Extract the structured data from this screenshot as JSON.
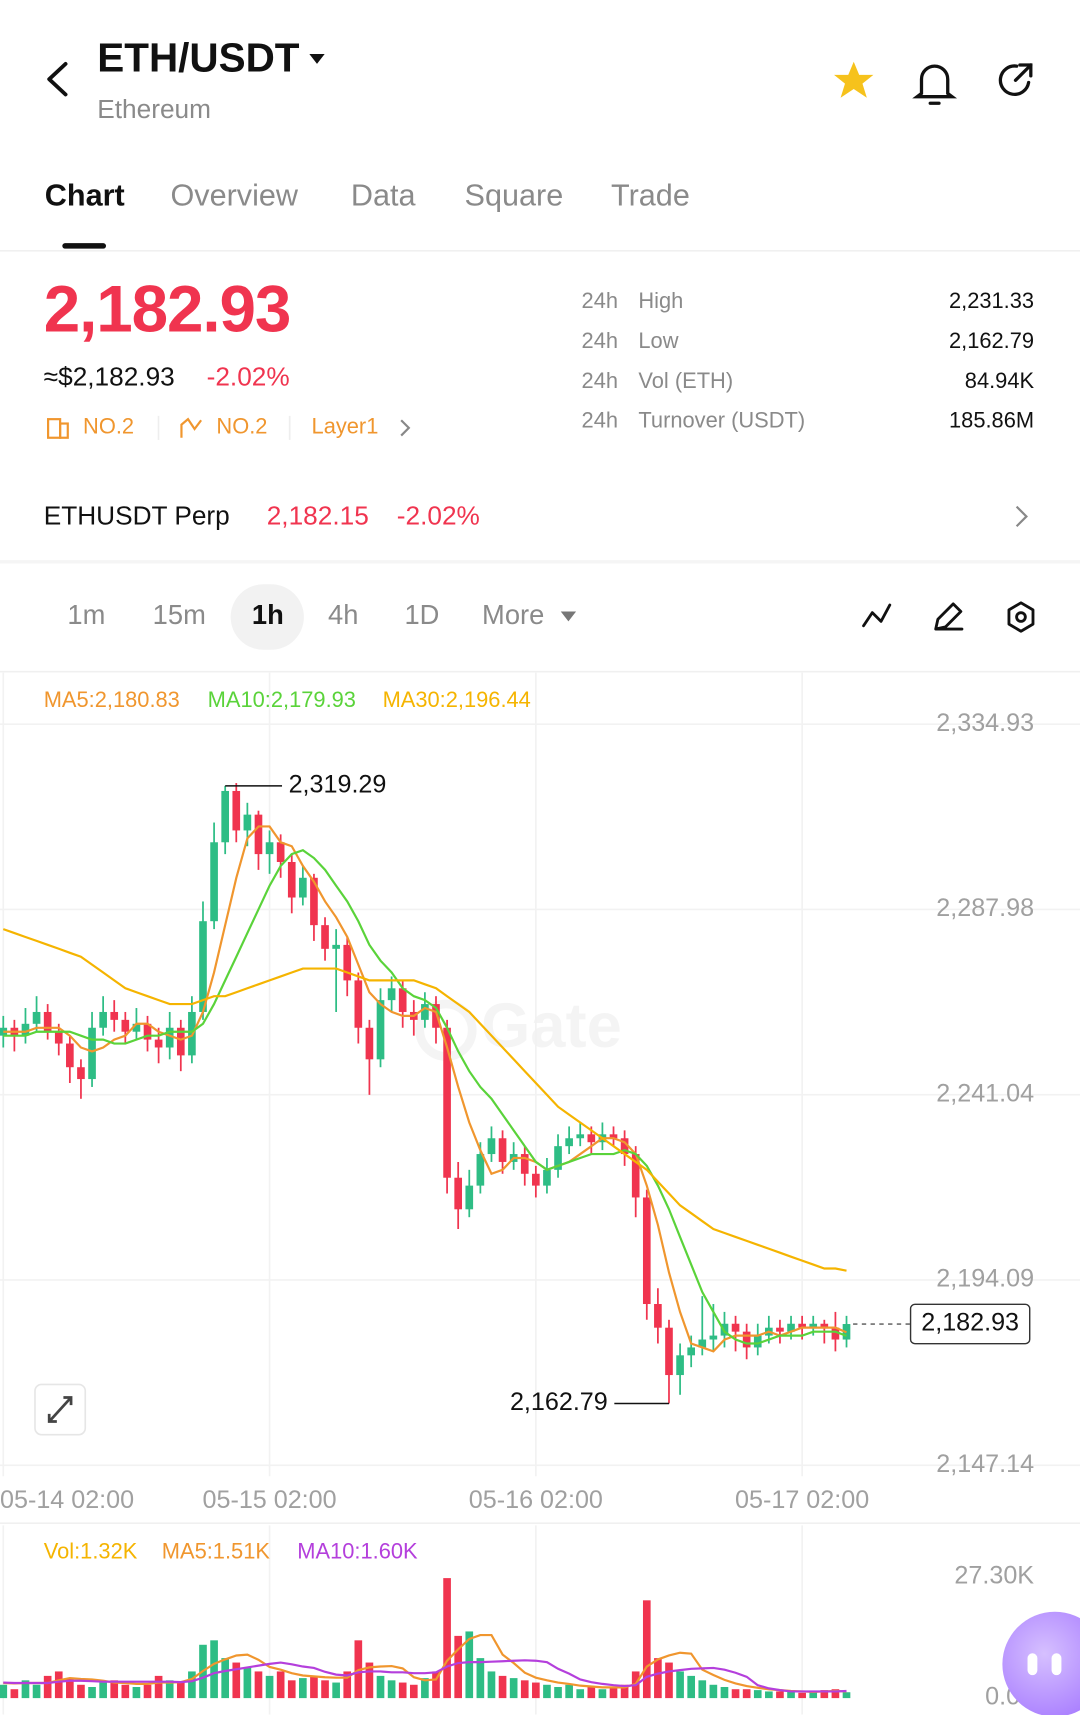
{
  "header": {
    "symbol": "ETH/USDT",
    "name": "Ethereum"
  },
  "tabs": {
    "items": [
      "Chart",
      "Overview",
      "Data",
      "Square",
      "Trade"
    ],
    "selected": 0
  },
  "quote": {
    "price": "2,182.93",
    "usd": "≈$2,182.93",
    "change": "-2.02%",
    "badges": [
      "NO.2",
      "NO.2",
      "Layer1"
    ]
  },
  "stats": [
    {
      "period": "24h",
      "label": "High",
      "value": "2,231.33"
    },
    {
      "period": "24h",
      "label": "Low",
      "value": "2,162.79"
    },
    {
      "period": "24h",
      "label": "Vol (ETH)",
      "value": "84.94K"
    },
    {
      "period": "24h",
      "label": "Turnover (USDT)",
      "value": "185.86M"
    }
  ],
  "perp": {
    "name": "ETHUSDT Perp",
    "price": "2,182.15",
    "change": "-2.02%"
  },
  "intervals": {
    "items": [
      "1m",
      "15m",
      "1h",
      "4h",
      "1D",
      "More"
    ],
    "selected": 2
  },
  "chart_data": {
    "type": "candlestick",
    "watermark": "Gate",
    "up_color": "#2ebd85",
    "down_color": "#f0344f",
    "grid": true,
    "ylim": [
      2144.37,
      2347.95
    ],
    "yticks": [
      {
        "value": 2334.93,
        "label": "2,334.93"
      },
      {
        "value": 2287.98,
        "label": "2,287.98"
      },
      {
        "value": 2241.04,
        "label": "2,241.04"
      },
      {
        "value": 2194.09,
        "label": "2,194.09"
      },
      {
        "value": 2147.14,
        "label": "2,147.14"
      }
    ],
    "xticks": [
      "05-14 02:00",
      "05-15 02:00",
      "05-16 02:00",
      "05-17 02:00"
    ],
    "x": [
      "05-14 02:00",
      "05-14 03:00",
      "05-14 04:00",
      "05-14 05:00",
      "05-14 06:00",
      "05-14 07:00",
      "05-14 08:00",
      "05-14 09:00",
      "05-14 10:00",
      "05-14 11:00",
      "05-14 12:00",
      "05-14 13:00",
      "05-14 14:00",
      "05-14 15:00",
      "05-14 16:00",
      "05-14 17:00",
      "05-14 18:00",
      "05-14 19:00",
      "05-14 20:00",
      "05-14 21:00",
      "05-14 22:00",
      "05-14 23:00",
      "05-15 00:00",
      "05-15 01:00",
      "05-15 02:00",
      "05-15 03:00",
      "05-15 04:00",
      "05-15 05:00",
      "05-15 06:00",
      "05-15 07:00",
      "05-15 08:00",
      "05-15 09:00",
      "05-15 10:00",
      "05-15 11:00",
      "05-15 12:00",
      "05-15 13:00",
      "05-15 14:00",
      "05-15 15:00",
      "05-15 16:00",
      "05-15 17:00",
      "05-15 18:00",
      "05-15 19:00",
      "05-15 20:00",
      "05-15 21:00",
      "05-15 22:00",
      "05-15 23:00",
      "05-16 00:00",
      "05-16 01:00",
      "05-16 02:00",
      "05-16 03:00",
      "05-16 04:00",
      "05-16 05:00",
      "05-16 06:00",
      "05-16 07:00",
      "05-16 08:00",
      "05-16 09:00",
      "05-16 10:00",
      "05-16 11:00",
      "05-16 12:00",
      "05-16 13:00",
      "05-16 14:00",
      "05-16 15:00",
      "05-16 16:00",
      "05-16 17:00",
      "05-16 18:00",
      "05-16 19:00",
      "05-16 20:00",
      "05-16 21:00",
      "05-16 22:00",
      "05-16 23:00",
      "05-17 00:00",
      "05-17 01:00",
      "05-17 02:00",
      "05-17 03:00",
      "05-17 04:00",
      "05-17 05:00",
      "05-17 06:00"
    ],
    "candles": [
      [
        2256,
        2261,
        2253,
        2258
      ],
      [
        2258,
        2260,
        2252,
        2256
      ],
      [
        2256,
        2263,
        2254,
        2259
      ],
      [
        2259,
        2266,
        2257,
        2262
      ],
      [
        2262,
        2264,
        2255,
        2257
      ],
      [
        2257,
        2259,
        2251,
        2254
      ],
      [
        2254,
        2256,
        2244,
        2248
      ],
      [
        2248,
        2250,
        2240,
        2245
      ],
      [
        2245,
        2262,
        2243,
        2258
      ],
      [
        2258,
        2266,
        2256,
        2262
      ],
      [
        2262,
        2265,
        2257,
        2260
      ],
      [
        2260,
        2262,
        2254,
        2257
      ],
      [
        2257,
        2263,
        2255,
        2259
      ],
      [
        2259,
        2261,
        2252,
        2255
      ],
      [
        2255,
        2258,
        2249,
        2253
      ],
      [
        2253,
        2262,
        2250,
        2258
      ],
      [
        2258,
        2260,
        2247,
        2251
      ],
      [
        2251,
        2266,
        2249,
        2262
      ],
      [
        2262,
        2290,
        2260,
        2285
      ],
      [
        2285,
        2310,
        2283,
        2305
      ],
      [
        2305,
        2319.29,
        2302,
        2318
      ],
      [
        2318,
        2320,
        2305,
        2308
      ],
      [
        2308,
        2315,
        2304,
        2312
      ],
      [
        2312,
        2313,
        2298,
        2302
      ],
      [
        2302,
        2308,
        2297,
        2305
      ],
      [
        2305,
        2307,
        2296,
        2300
      ],
      [
        2300,
        2302,
        2287,
        2291
      ],
      [
        2291,
        2299,
        2289,
        2296
      ],
      [
        2296,
        2297,
        2280,
        2284
      ],
      [
        2284,
        2286,
        2275,
        2278
      ],
      [
        2278,
        2283,
        2262,
        2279
      ],
      [
        2279,
        2281,
        2266,
        2270
      ],
      [
        2270,
        2272,
        2254,
        2258
      ],
      [
        2258,
        2260,
        2241,
        2250
      ],
      [
        2250,
        2268,
        2248,
        2265
      ],
      [
        2265,
        2271,
        2262,
        2268
      ],
      [
        2268,
        2270,
        2258,
        2262
      ],
      [
        2262,
        2265,
        2256,
        2260
      ],
      [
        2260,
        2267,
        2258,
        2264
      ],
      [
        2264,
        2266,
        2254,
        2258
      ],
      [
        2258,
        2260,
        2216,
        2220
      ],
      [
        2220,
        2224,
        2207,
        2212
      ],
      [
        2212,
        2222,
        2210,
        2218
      ],
      [
        2218,
        2229,
        2216,
        2226
      ],
      [
        2226,
        2233,
        2224,
        2230
      ],
      [
        2230,
        2232,
        2221,
        2224
      ],
      [
        2224,
        2229,
        2222,
        2226
      ],
      [
        2226,
        2228,
        2218,
        2221
      ],
      [
        2221,
        2223,
        2215,
        2218
      ],
      [
        2218,
        2225,
        2216,
        2222
      ],
      [
        2222,
        2231,
        2220,
        2228
      ],
      [
        2228,
        2233,
        2226,
        2230
      ],
      [
        2230,
        2234,
        2228,
        2231
      ],
      [
        2231,
        2233,
        2226,
        2229
      ],
      [
        2229,
        2234,
        2227,
        2231
      ],
      [
        2231,
        2233,
        2228,
        2230
      ],
      [
        2230,
        2232,
        2223,
        2226
      ],
      [
        2226,
        2228,
        2210,
        2215
      ],
      [
        2215,
        2217,
        2184,
        2188
      ],
      [
        2188,
        2192,
        2178,
        2182
      ],
      [
        2182,
        2184,
        2162.79,
        2170
      ],
      [
        2170,
        2178,
        2165,
        2175
      ],
      [
        2175,
        2180,
        2172,
        2177
      ],
      [
        2177,
        2190,
        2175,
        2179
      ],
      [
        2179,
        2188,
        2176,
        2180
      ],
      [
        2180,
        2186,
        2177,
        2183
      ],
      [
        2183,
        2185,
        2176,
        2181
      ],
      [
        2181,
        2183,
        2174,
        2177
      ],
      [
        2177,
        2183,
        2175,
        2180
      ],
      [
        2180,
        2185,
        2178,
        2182
      ],
      [
        2182,
        2184,
        2178,
        2181
      ],
      [
        2181,
        2185,
        2179,
        2183
      ],
      [
        2183,
        2185,
        2179,
        2182
      ],
      [
        2182,
        2185,
        2180,
        2183
      ],
      [
        2183,
        2184,
        2178,
        2182
      ],
      [
        2182,
        2186,
        2176,
        2179
      ],
      [
        2179,
        2185,
        2177,
        2182.93
      ]
    ],
    "series": [
      {
        "name": "MA5",
        "legend_label": "MA5:2,180.83",
        "color": "#f0962e",
        "values": [
          2257,
          2257,
          2257,
          2258,
          2258,
          2258,
          2256,
          2253,
          2252,
          2253,
          2255,
          2256,
          2259,
          2259,
          2257,
          2256,
          2255,
          2256,
          2262,
          2272,
          2284,
          2296,
          2306,
          2309,
          2309,
          2305,
          2304,
          2299,
          2295,
          2290,
          2286,
          2281,
          2274,
          2267,
          2264,
          2262,
          2261,
          2261,
          2263,
          2262,
          2253,
          2243,
          2234,
          2227,
          2221,
          2222,
          2225,
          2225,
          2224,
          2222,
          2223,
          2224,
          2226,
          2228,
          2230,
          2230,
          2229,
          2226,
          2218,
          2208,
          2196,
          2186,
          2178,
          2177,
          2176,
          2179,
          2180,
          2180,
          2180,
          2181,
          2180,
          2181,
          2182,
          2182,
          2182,
          2182,
          2180.83
        ]
      },
      {
        "name": "MA10",
        "legend_label": "MA10:2,179.93",
        "color": "#5ad33a",
        "values": [
          2256,
          2256,
          2256,
          2257,
          2257,
          2257,
          2257,
          2256,
          2255,
          2255,
          2254,
          2254,
          2255,
          2256,
          2256,
          2257,
          2257,
          2257,
          2259,
          2264,
          2270,
          2276,
          2282,
          2288,
          2294,
          2299,
          2302,
          2303,
          2301,
          2298,
          2294,
          2290,
          2285,
          2279,
          2275,
          2272,
          2268,
          2266,
          2265,
          2263,
          2258,
          2252,
          2247,
          2243,
          2240,
          2236,
          2232,
          2228,
          2224,
          2222,
          2223,
          2224,
          2225,
          2226,
          2226,
          2226,
          2227,
          2226,
          2223,
          2218,
          2212,
          2205,
          2198,
          2191,
          2186,
          2181,
          2179,
          2178,
          2178,
          2179,
          2180,
          2180,
          2180,
          2181,
          2181,
          2181,
          2179.93
        ]
      },
      {
        "name": "MA30",
        "legend_label": "MA30:2,196.44",
        "color": "#f5b400",
        "values": [
          2283,
          2282,
          2281,
          2280,
          2279,
          2278,
          2277,
          2276,
          2274,
          2272,
          2270,
          2268,
          2267,
          2266,
          2265,
          2264,
          2264,
          2264,
          2265,
          2266,
          2266,
          2267,
          2268,
          2269,
          2270,
          2271,
          2272,
          2273,
          2273,
          2273,
          2273,
          2272,
          2271,
          2270,
          2270,
          2270,
          2270,
          2270,
          2269,
          2268,
          2266,
          2264,
          2262,
          2259,
          2256,
          2253,
          2250,
          2247,
          2244,
          2241,
          2238,
          2236,
          2234,
          2232,
          2230,
          2228,
          2226,
          2224,
          2222,
          2219,
          2216,
          2213,
          2211,
          2209,
          2207,
          2206,
          2205,
          2204,
          2203,
          2202,
          2201,
          2200,
          2199,
          2198,
          2197,
          2197,
          2196.44
        ]
      }
    ],
    "high_label": {
      "value": 2319.29,
      "label": "2,319.29"
    },
    "low_label": {
      "value": 2162.79,
      "label": "2,162.79"
    },
    "last_label": {
      "value": 2182.93,
      "label": "2,182.93"
    },
    "volume": {
      "legend_label": "Vol:1.32K",
      "legend_color": "#f5b400",
      "ylim": [
        0,
        27300
      ],
      "yticks": [
        {
          "value": 27300,
          "label": "27.30K"
        },
        {
          "value": 0,
          "label": "0.00"
        }
      ],
      "values": [
        3000,
        2000,
        4000,
        3000,
        5000,
        6000,
        4500,
        3000,
        2500,
        3500,
        4000,
        3000,
        2500,
        3000,
        5000,
        4000,
        3500,
        6000,
        12000,
        13000,
        9000,
        8000,
        7000,
        6000,
        5000,
        6000,
        4000,
        4500,
        5000,
        4000,
        3500,
        6000,
        13000,
        8000,
        5000,
        4000,
        3500,
        3000,
        4500,
        6000,
        27000,
        14000,
        15000,
        9000,
        6000,
        5000,
        4500,
        4000,
        3500,
        3000,
        2500,
        3000,
        2000,
        2500,
        2000,
        2500,
        3000,
        6000,
        22000,
        9000,
        8000,
        6000,
        5000,
        4000,
        3000,
        2500,
        2000,
        2000,
        1800,
        1500,
        1500,
        1400,
        1200,
        1600,
        1800,
        2000,
        1320
      ],
      "series": [
        {
          "name": "MA5",
          "legend_label": "MA5:1.51K",
          "color": "#f0962e",
          "values": [
            3400,
            3300,
            3400,
            3400,
            3400,
            4000,
            4500,
            4300,
            4200,
            3900,
            3500,
            3400,
            3200,
            3200,
            3500,
            3500,
            3600,
            4300,
            6100,
            7700,
            8700,
            9600,
            9800,
            8600,
            7000,
            6400,
            5600,
            5100,
            4900,
            4700,
            4600,
            4600,
            6300,
            6900,
            7100,
            7200,
            6700,
            4700,
            4000,
            4200,
            8400,
            11000,
            13300,
            14200,
            14200,
            9800,
            7900,
            5700,
            4600,
            4000,
            3500,
            3200,
            2800,
            2600,
            2400,
            2400,
            2400,
            3200,
            7100,
            8700,
            9600,
            10200,
            10000,
            6400,
            5200,
            4100,
            3300,
            2700,
            2300,
            2000,
            1800,
            1600,
            1500,
            1400,
            1500,
            1600,
            1510
          ]
        },
        {
          "name": "MA10",
          "legend_label": "MA10:1.60K",
          "color": "#b43fdc",
          "values": [
            3500,
            3400,
            3400,
            3400,
            3400,
            3700,
            3900,
            3900,
            3800,
            3700,
            3700,
            3700,
            3700,
            3700,
            3700,
            3700,
            3600,
            3800,
            4600,
            5600,
            6100,
            6500,
            6900,
            7300,
            7700,
            8000,
            7600,
            7100,
            6800,
            5900,
            5300,
            5100,
            5800,
            6000,
            6000,
            5800,
            5800,
            5600,
            5600,
            5800,
            7100,
            7900,
            8100,
            8100,
            8200,
            8300,
            8400,
            8500,
            8400,
            8100,
            6600,
            5500,
            4200,
            3600,
            3200,
            2900,
            2700,
            2900,
            4800,
            5500,
            6000,
            6300,
            6600,
            6700,
            6800,
            6400,
            5700,
            4800,
            2900,
            2200,
            1800,
            1500,
            1500,
            1500,
            1500,
            1500,
            1600
          ]
        }
      ]
    }
  }
}
